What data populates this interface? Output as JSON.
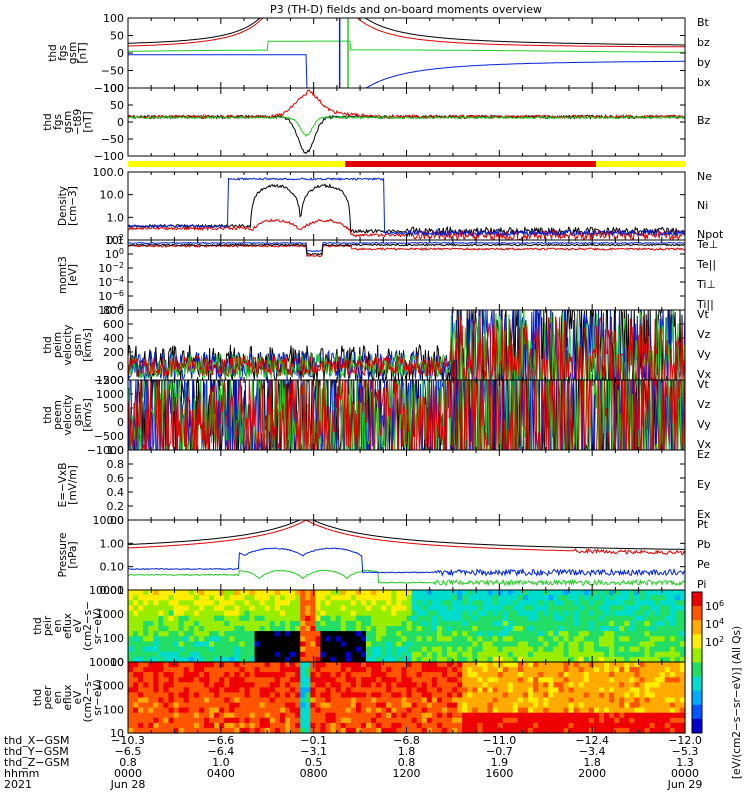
{
  "title": "P3 (TH-D) fields and on-board moments overview",
  "colors": {
    "black": "#000000",
    "red": "#e00000",
    "green": "#22cc22",
    "blue": "#0022e0",
    "yellow": "#ffff00",
    "barred": "#e00000"
  },
  "panels": [
    {
      "id": "fgs",
      "label": [
        "thd",
        "fgs",
        "gsm",
        "[nT]"
      ],
      "scale": "linear",
      "ylim": [
        -100,
        100
      ],
      "ticks": [
        "100",
        "50",
        "0",
        "−50",
        "−100"
      ],
      "legend": [
        {
          "text": "Bt",
          "color": "black"
        },
        {
          "text": "bz",
          "color": "red"
        },
        {
          "text": "by",
          "color": "green"
        },
        {
          "text": "bx",
          "color": "blue"
        }
      ]
    },
    {
      "id": "fgs_t89",
      "label": [
        "thd",
        "fgs",
        "gsm",
        "−t89",
        "[nT]"
      ],
      "scale": "linear",
      "ylim": [
        -130,
        100
      ],
      "ticks": [
        "100",
        "50",
        "0",
        "−50",
        "−100"
      ],
      "legend": [
        {
          "text": "Bz",
          "color": "red"
        }
      ]
    },
    {
      "id": "density",
      "label": [
        "Density",
        "[cm−3]"
      ],
      "scale": "log",
      "ylim": [
        0.1,
        100
      ],
      "ticks": [
        "100.0",
        "10.0",
        "1.0",
        "0.1"
      ],
      "legend": [
        {
          "text": "Ne",
          "color": "red"
        },
        {
          "text": "Ni",
          "color": "black"
        },
        {
          "text": "Npot",
          "color": "blue"
        }
      ]
    },
    {
      "id": "temp",
      "label": [
        "momt3",
        "[eV]"
      ],
      "scale": "log",
      "ticks": [
        "10",
        "10",
        "10",
        "10",
        "10",
        "10"
      ],
      "ticksup": [
        "2",
        "0",
        "−2",
        "−4",
        "−6",
        "−8"
      ],
      "legend": [
        {
          "text": "Te⊥",
          "color": "red"
        },
        {
          "text": "Te||",
          "color": "black"
        },
        {
          "text": "Ti⊥",
          "color": "blue"
        },
        {
          "text": "Ti||",
          "color": "green"
        }
      ]
    },
    {
      "id": "peim",
      "label": [
        "thd",
        "peim",
        "velocity",
        "gsm",
        "[km/s]"
      ],
      "scale": "linear",
      "ylim": [
        -200,
        800
      ],
      "ticks": [
        "800",
        "600",
        "400",
        "200",
        "0",
        "−200"
      ],
      "legend": [
        {
          "text": "Vt",
          "color": "black"
        },
        {
          "text": "Vz",
          "color": "red"
        },
        {
          "text": "Vy",
          "color": "green"
        },
        {
          "text": "Vx",
          "color": "blue"
        }
      ]
    },
    {
      "id": "peem",
      "label": [
        "thd",
        "peem",
        "velocity",
        "gsm",
        "[km/s]"
      ],
      "scale": "linear",
      "ylim": [
        -1000,
        1500
      ],
      "ticks": [
        "1500",
        "1000",
        "500",
        "0",
        "−500",
        "−1000"
      ],
      "legend": [
        {
          "text": "Vt",
          "color": "black"
        },
        {
          "text": "Vz",
          "color": "red"
        },
        {
          "text": "Vy",
          "color": "green"
        },
        {
          "text": "Vx",
          "color": "blue"
        }
      ]
    },
    {
      "id": "efield",
      "label": [
        "E=−VxB",
        "[mV/m]"
      ],
      "scale": "linear",
      "ylim": [
        0,
        1
      ],
      "ticks": [
        "1.0",
        "0.8",
        "0.6",
        "0.4",
        "0.2",
        "0.0"
      ],
      "legend": [
        {
          "text": "Ez",
          "color": "red"
        },
        {
          "text": "Ey",
          "color": "green"
        },
        {
          "text": "Ex",
          "color": "blue"
        }
      ]
    },
    {
      "id": "pressure",
      "label": [
        "Pressure",
        "[nPa]"
      ],
      "scale": "log",
      "ylim": [
        0.005,
        20
      ],
      "ticks": [
        "10.00",
        "1.00",
        "0.10",
        "0.01"
      ],
      "legend": [
        {
          "text": "Pt",
          "color": "black"
        },
        {
          "text": "Pb",
          "color": "red"
        },
        {
          "text": "Pe",
          "color": "green"
        },
        {
          "text": "Pi",
          "color": "blue"
        }
      ]
    },
    {
      "id": "peir",
      "label": [
        "thd",
        "peir",
        "en",
        "eflux",
        "eV",
        "(cm2−s−",
        "sr−eV)"
      ],
      "scale": "log",
      "ticks": [
        "10000",
        "1000",
        "100",
        "10"
      ]
    },
    {
      "id": "peer",
      "label": [
        "thd",
        "peer",
        "en",
        "eflux",
        "eV",
        "(cm2−s−",
        "sr−eV)"
      ],
      "scale": "log",
      "ticks": [
        "10000",
        "1000",
        "100",
        "10"
      ]
    }
  ],
  "colorbar": {
    "label": "[eV/(cm2−s−sr−eV)] (All Qs)",
    "ticks": [
      "10",
      "10",
      "10"
    ],
    "ticksup": [
      "6",
      "4",
      "2"
    ]
  },
  "x_axis": {
    "rows": [
      {
        "name": "thd_X−GSM",
        "values": [
          "−10.3",
          "−6.6",
          "−0.1",
          "−6.8",
          "−11.0",
          "−12.4",
          "−12.0"
        ]
      },
      {
        "name": "thd_Y−GSM",
        "values": [
          "−6.5",
          "−6.4",
          "−3.1",
          "1.8",
          "−0.7",
          "−3.4",
          "−5.3"
        ]
      },
      {
        "name": "thd_Z−GSM",
        "values": [
          "0.8",
          "1.0",
          "0.5",
          "0.8",
          "1.9",
          "1.8",
          "1.3"
        ]
      },
      {
        "name": "hhmm",
        "values": [
          "0000",
          "0400",
          "0800",
          "1200",
          "1600",
          "2000",
          "0000"
        ]
      }
    ],
    "year": "2021",
    "date_start": "Jun 28",
    "date_end": "Jun 29"
  },
  "chart_data": [
    {
      "type": "line",
      "title": "P3 (TH-D) fields and on-board moments overview",
      "ylabel": "thd fgs gsm [nT]",
      "ylim": [
        -100,
        100
      ],
      "x": [
        "0000",
        "0400",
        "0800",
        "1200",
        "1600",
        "2000",
        "0000"
      ],
      "series": [
        {
          "name": "Bt",
          "values": [
            20,
            40,
            100,
            60,
            35,
            30,
            22
          ]
        },
        {
          "name": "bz",
          "values": [
            15,
            30,
            100,
            55,
            30,
            25,
            20
          ]
        },
        {
          "name": "by",
          "values": [
            5,
            10,
            20,
            8,
            5,
            2,
            3
          ]
        },
        {
          "name": "bx",
          "values": [
            -5,
            -10,
            -100,
            -60,
            -35,
            -30,
            -20
          ]
        }
      ]
    },
    {
      "type": "line",
      "ylabel": "thd fgs gsm −t89 [nT]",
      "ylim": [
        -130,
        100
      ],
      "x": [
        "0000",
        "0400",
        "0800",
        "1200",
        "1600",
        "2000",
        "0000"
      ],
      "series": [
        {
          "name": "Bz",
          "values": [
            5,
            5,
            80,
            5,
            3,
            2,
            5
          ]
        }
      ]
    },
    {
      "type": "line",
      "ylabel": "Density [cm−3]",
      "ylim": [
        0.1,
        100
      ],
      "x": [
        "0000",
        "0400",
        "0800",
        "1200",
        "1600",
        "2000",
        "0000"
      ],
      "series": [
        {
          "name": "Ne",
          "values": [
            0.4,
            0.6,
            1,
            0.3,
            0.2,
            0.15,
            0.2
          ]
        },
        {
          "name": "Ni",
          "values": [
            0.5,
            2,
            60,
            0.5,
            0.3,
            0.2,
            0.3
          ]
        },
        {
          "name": "Npot",
          "values": [
            0.5,
            2.5,
            100,
            0.4,
            0.3,
            0.2,
            0.3
          ]
        }
      ]
    },
    {
      "type": "line",
      "ylabel": "momt3 [eV]",
      "x": [
        "0000",
        "0400",
        "0800",
        "1200",
        "1600",
        "2000",
        "0000"
      ],
      "series": [
        {
          "name": "Te⊥",
          "values": [
            100,
            100,
            30,
            80,
            60,
            60,
            60
          ]
        },
        {
          "name": "Ti⊥",
          "values": [
            200,
            200,
            50,
            150,
            150,
            150,
            150
          ]
        }
      ]
    },
    {
      "type": "line",
      "ylabel": "thd peim velocity gsm [km/s]",
      "ylim": [
        -200,
        800
      ],
      "x": [
        "0000",
        "0400",
        "0800",
        "1200",
        "1600",
        "2000",
        "0000"
      ],
      "series": [
        {
          "name": "Vt",
          "values": [
            30,
            30,
            10,
            20,
            150,
            120,
            100
          ]
        }
      ]
    },
    {
      "type": "line",
      "ylabel": "thd peem velocity gsm [km/s]",
      "ylim": [
        -1000,
        1500
      ],
      "x": [
        "0000",
        "0400",
        "0800",
        "1200",
        "1600",
        "2000",
        "0000"
      ],
      "series": [
        {
          "name": "Vt",
          "values": [
            100,
            100,
            150,
            80,
            500,
            400,
            300
          ]
        }
      ]
    },
    {
      "type": "line",
      "ylabel": "E=−VxB [mV/m]",
      "ylim": [
        0,
        1
      ],
      "series": []
    },
    {
      "type": "line",
      "ylabel": "Pressure [nPa]",
      "ylim": [
        0.005,
        20
      ],
      "x": [
        "0000",
        "0400",
        "0800",
        "1200",
        "1600",
        "2000",
        "0000"
      ],
      "series": [
        {
          "name": "Pt",
          "values": [
            0.3,
            1.5,
            20,
            2,
            0.3,
            0.15,
            0.1
          ]
        },
        {
          "name": "Pb",
          "values": [
            0.2,
            1.2,
            20,
            1.8,
            0.25,
            0.12,
            0.08
          ]
        },
        {
          "name": "Pe",
          "values": [
            0.03,
            0.05,
            0.03,
            0.03,
            0.01,
            0.01,
            0.01
          ]
        },
        {
          "name": "Pi",
          "values": [
            0.05,
            0.1,
            0.05,
            0.6,
            0.05,
            0.03,
            0.03
          ]
        }
      ]
    },
    {
      "type": "heatmap",
      "ylabel": "thd peir en eflux eV",
      "ylim": [
        5,
        25000
      ]
    },
    {
      "type": "heatmap",
      "ylabel": "thd peer en eflux eV",
      "ylim": [
        5,
        25000
      ]
    }
  ]
}
